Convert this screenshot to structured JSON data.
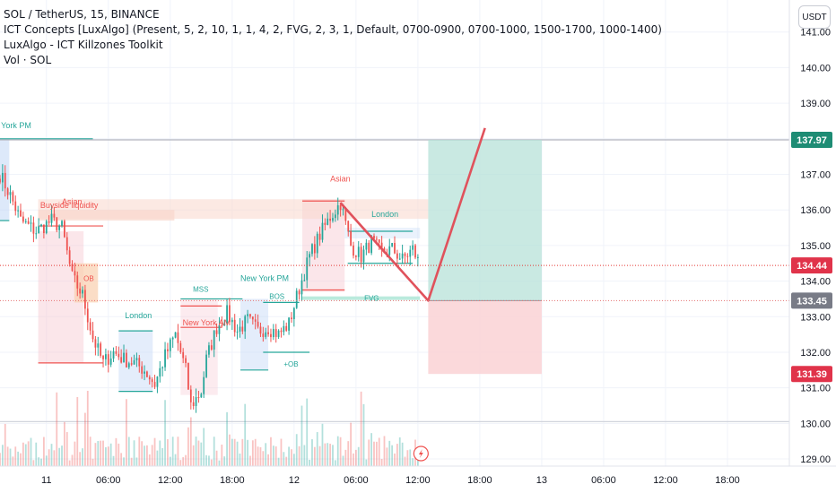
{
  "legend": {
    "symbol": "SOL / TetherUS, 15, BINANCE",
    "indicator1": "ICT Concepts [LuxAlgo] (Present, 5, 2, 10, 1, 1, 4, 2, FVG, 2, 3, 1, Default, 0700-0900, 0700-1000, 1500-1700, 1000-1400)",
    "indicator2": "LuxAlgo - ICT Killzones Toolkit",
    "indicator3": "Vol · SOL"
  },
  "currency_button": "USDT",
  "colors": {
    "up": "#26a69a",
    "down": "#ef5350",
    "target_zone": "#b2dfd5",
    "stop_zone": "#fbd5d7",
    "price_line": "#e53935",
    "target_label": "#1e8c74",
    "current_label": "#e0334a",
    "entry_label": "#787b86"
  },
  "chart_data": {
    "type": "candlestick",
    "symbol": "SOL/USDT",
    "interval": "15",
    "y_ticks": [
      "141.00",
      "140.00",
      "139.00",
      "138.00",
      "137.00",
      "136.00",
      "135.00",
      "134.00",
      "133.00",
      "132.00",
      "131.00",
      "130.00",
      "129.00"
    ],
    "ylim": [
      128.8,
      141.9
    ],
    "x_ticks": [
      {
        "label": "11",
        "t": 0
      },
      {
        "label": "06:00",
        "t": 6
      },
      {
        "label": "12:00",
        "t": 12
      },
      {
        "label": "18:00",
        "t": 18
      },
      {
        "label": "12",
        "t": 24
      },
      {
        "label": "06:00",
        "t": 30
      },
      {
        "label": "12:00",
        "t": 36
      },
      {
        "label": "18:00",
        "t": 42
      },
      {
        "label": "13",
        "t": 48
      },
      {
        "label": "06:00",
        "t": 54
      },
      {
        "label": "12:00",
        "t": 60
      },
      {
        "label": "18:00",
        "t": 66
      }
    ],
    "xlim": [
      -4.5,
      72
    ],
    "price_labels": [
      {
        "name": "target",
        "value": 137.97,
        "text": "137.97"
      },
      {
        "name": "current",
        "value": 134.44,
        "text": "134.44"
      },
      {
        "name": "entry",
        "value": 133.45,
        "text": "133.45"
      },
      {
        "name": "stop",
        "value": 131.39,
        "text": "131.39"
      }
    ],
    "anchor_points": [
      {
        "t": -4.5,
        "p": 137.0
      },
      {
        "t": -3.5,
        "p": 136.4
      },
      {
        "t": -2.5,
        "p": 135.7
      },
      {
        "t": -1.0,
        "p": 135.4
      },
      {
        "t": 0.5,
        "p": 135.7
      },
      {
        "t": 1.5,
        "p": 135.5
      },
      {
        "t": 2.5,
        "p": 134.1
      },
      {
        "t": 3.5,
        "p": 133.6
      },
      {
        "t": 4.5,
        "p": 132.4
      },
      {
        "t": 5.5,
        "p": 131.7
      },
      {
        "t": 6.5,
        "p": 132.0
      },
      {
        "t": 7.5,
        "p": 131.8
      },
      {
        "t": 8.5,
        "p": 131.7
      },
      {
        "t": 9.5,
        "p": 131.5
      },
      {
        "t": 10.5,
        "p": 131.1
      },
      {
        "t": 11.5,
        "p": 131.9
      },
      {
        "t": 12.5,
        "p": 132.5
      },
      {
        "t": 13.5,
        "p": 131.5
      },
      {
        "t": 14.0,
        "p": 130.5
      },
      {
        "t": 15.0,
        "p": 130.9
      },
      {
        "t": 15.5,
        "p": 131.8
      },
      {
        "t": 16.5,
        "p": 132.7
      },
      {
        "t": 17.5,
        "p": 133.1
      },
      {
        "t": 18.5,
        "p": 132.6
      },
      {
        "t": 19.5,
        "p": 132.9
      },
      {
        "t": 20.5,
        "p": 132.6
      },
      {
        "t": 21.5,
        "p": 132.7
      },
      {
        "t": 22.5,
        "p": 132.5
      },
      {
        "t": 23.5,
        "p": 132.8
      },
      {
        "t": 24.5,
        "p": 133.8
      },
      {
        "t": 25.5,
        "p": 134.7
      },
      {
        "t": 26.5,
        "p": 135.3
      },
      {
        "t": 27.5,
        "p": 135.8
      },
      {
        "t": 28.5,
        "p": 136.2
      },
      {
        "t": 29.5,
        "p": 135.0
      },
      {
        "t": 30.5,
        "p": 134.7
      },
      {
        "t": 31.5,
        "p": 135.1
      },
      {
        "t": 32.5,
        "p": 134.8
      },
      {
        "t": 33.5,
        "p": 134.9
      },
      {
        "t": 34.5,
        "p": 134.6
      },
      {
        "t": 35.5,
        "p": 134.9
      },
      {
        "t": 36.2,
        "p": 134.44
      }
    ],
    "annotations": [
      {
        "text": "York PM",
        "t": -4.4,
        "p": 138.3,
        "color": "#26a69a"
      },
      {
        "text": "Buyside liquidity",
        "t": -0.6,
        "p": 136.05,
        "color": "#ef5350"
      },
      {
        "text": "Asian",
        "t": 1.5,
        "p": 136.15,
        "color": "#ef5350"
      },
      {
        "text": "OB",
        "t": 3.6,
        "p": 134.0,
        "color": "#ef5350"
      },
      {
        "text": "London",
        "t": 7.6,
        "p": 132.96,
        "color": "#26a69a"
      },
      {
        "text": "MSS",
        "t": 14.2,
        "p": 133.7,
        "color": "#26a69a"
      },
      {
        "text": "New York AM",
        "t": 13.2,
        "p": 132.76,
        "color": "#ef5350"
      },
      {
        "text": "New York PM",
        "t": 18.8,
        "p": 134.0,
        "color": "#26a69a"
      },
      {
        "text": "BOS",
        "t": 21.6,
        "p": 133.5,
        "color": "#26a69a"
      },
      {
        "text": "+OB",
        "t": 23.0,
        "p": 131.6,
        "color": "#26a69a"
      },
      {
        "text": "Asian",
        "t": 27.5,
        "p": 136.8,
        "color": "#ef5350"
      },
      {
        "text": "London",
        "t": 31.5,
        "p": 135.8,
        "color": "#26a69a"
      },
      {
        "text": "FVG",
        "t": 30.8,
        "p": 133.45,
        "color": "#26a69a"
      }
    ],
    "trade": {
      "entry_t": 37.0,
      "end_t": 48.0,
      "entry": 133.45,
      "target": 137.97,
      "stop": 131.39,
      "path": [
        {
          "t": 28.5,
          "p": 136.2
        },
        {
          "t": 37.0,
          "p": 133.45
        },
        {
          "t": 42.5,
          "p": 138.3
        }
      ]
    },
    "lightning_icon_t": 36.3
  }
}
